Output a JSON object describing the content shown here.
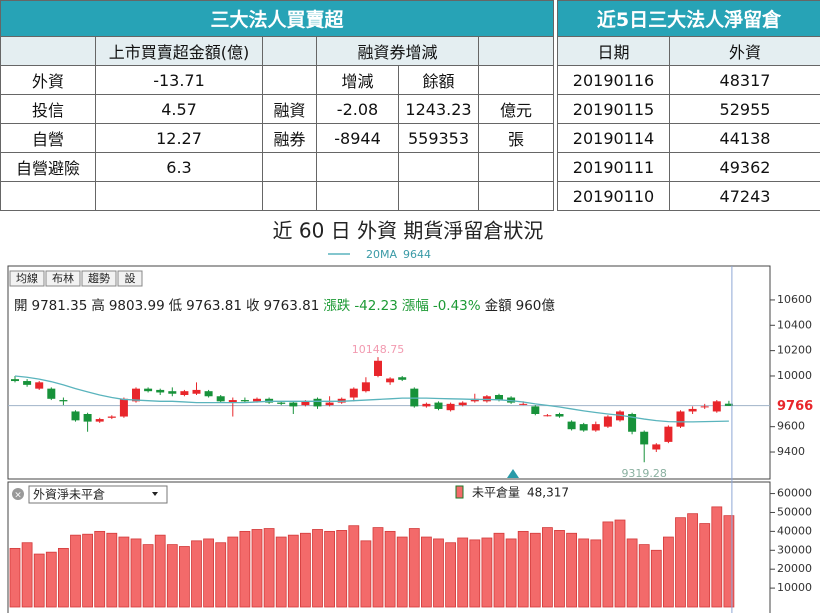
{
  "tables": {
    "left": {
      "title": "三大法人買賣超",
      "header": [
        "上市買賣超金額(億)",
        "融資券增減"
      ],
      "rows": [
        [
          "外資",
          "-13.71",
          "增減",
          "餘額"
        ],
        [
          "投信",
          "4.57",
          "融資",
          "-2.08",
          "1243.23",
          "億元"
        ],
        [
          "自營",
          "12.27",
          "融券",
          "-8944",
          "559353",
          "張"
        ],
        [
          "自營避險",
          "6.3"
        ]
      ]
    },
    "right": {
      "title": "近5日三大法人淨留倉",
      "header": [
        "日期",
        "外資"
      ],
      "rows": [
        [
          "20190116",
          "48317"
        ],
        [
          "20190115",
          "52955"
        ],
        [
          "20190114",
          "44138"
        ],
        [
          "20190111",
          "49362"
        ],
        [
          "20190110",
          "47243"
        ]
      ]
    }
  },
  "chart_data": [
    {
      "type": "candlestick",
      "title": "近 60 日 外資 期貨淨留倉狀況",
      "toolbar": [
        "均線",
        "布林",
        "趨勢",
        "設"
      ],
      "info": [
        [
          "開",
          "9781.35"
        ],
        [
          "高",
          "9803.99"
        ],
        [
          "低",
          "9763.81"
        ],
        [
          "收",
          "9763.81"
        ],
        [
          "漲跌",
          "-42.23"
        ],
        [
          "漲幅",
          "-0.43%"
        ],
        [
          "金額",
          "960億"
        ]
      ],
      "up_color": "#e8262b",
      "down_color": "#17923a",
      "open": [
        9975,
        9960,
        9900,
        9900,
        9810,
        9720,
        9700,
        9640,
        9670,
        9680,
        9800,
        9900,
        9890,
        9880,
        9850,
        9860,
        9880,
        9840,
        9790,
        9810,
        9800,
        9820,
        9790,
        9790,
        9770,
        9820,
        9770,
        9790,
        9830,
        9880,
        10000,
        9950,
        9990,
        9900,
        9760,
        9790,
        9730,
        9770,
        9800,
        9800,
        9850,
        9830,
        9780,
        9760,
        9690,
        9700,
        9640,
        9620,
        9570,
        9600,
        9650,
        9700,
        9560,
        9420,
        9480,
        9600,
        9720,
        9760,
        9720,
        9781.35
      ],
      "high": [
        10000,
        9975,
        9960,
        9910,
        9830,
        9730,
        9710,
        9670,
        9690,
        9830,
        9910,
        9910,
        9900,
        9910,
        9890,
        9950,
        9890,
        9850,
        9830,
        9830,
        9830,
        9830,
        9800,
        9800,
        9810,
        9830,
        9840,
        9830,
        9910,
        9990,
        10148.75,
        9990,
        10000,
        9910,
        9790,
        9800,
        9790,
        9800,
        9860,
        9850,
        9860,
        9840,
        9800,
        9770,
        9700,
        9710,
        9650,
        9630,
        9640,
        9690,
        9730,
        9710,
        9570,
        9470,
        9610,
        9730,
        9760,
        9780,
        9810,
        9803.99
      ],
      "low": [
        9950,
        9915,
        9890,
        9810,
        9770,
        9640,
        9560,
        9630,
        9660,
        9670,
        9790,
        9870,
        9850,
        9840,
        9840,
        9850,
        9830,
        9790,
        9680,
        9790,
        9790,
        9780,
        9770,
        9700,
        9760,
        9740,
        9760,
        9780,
        9800,
        9870,
        9990,
        9930,
        9960,
        9750,
        9750,
        9730,
        9720,
        9760,
        9790,
        9790,
        9800,
        9780,
        9770,
        9690,
        9680,
        9670,
        9570,
        9560,
        9560,
        9590,
        9640,
        9540,
        9319.28,
        9400,
        9470,
        9590,
        9700,
        9740,
        9710,
        9763.81
      ],
      "close": [
        9960,
        9930,
        9950,
        9820,
        9800,
        9650,
        9640,
        9660,
        9680,
        9820,
        9900,
        9880,
        9870,
        9860,
        9880,
        9890,
        9840,
        9800,
        9810,
        9800,
        9820,
        9790,
        9780,
        9760,
        9800,
        9760,
        9790,
        9820,
        9900,
        9950,
        10120,
        9980,
        9970,
        9760,
        9780,
        9740,
        9780,
        9790,
        9820,
        9840,
        9810,
        9790,
        9780,
        9700,
        9690,
        9680,
        9580,
        9570,
        9620,
        9680,
        9720,
        9560,
        9460,
        9460,
        9600,
        9720,
        9740,
        9760,
        9800,
        9763.81
      ],
      "ma": {
        "name": "20MA",
        "color": "#5ab4bd",
        "values": [
          10000,
          9990,
          9975,
          9955,
          9930,
          9900,
          9875,
          9850,
          9830,
          9815,
          9810,
          9805,
          9800,
          9800,
          9795,
          9790,
          9790,
          9790,
          9790,
          9790,
          9795,
          9800,
          9800,
          9800,
          9800,
          9800,
          9800,
          9800,
          9805,
          9810,
          9815,
          9820,
          9825,
          9825,
          9825,
          9822,
          9820,
          9818,
          9815,
          9815,
          9812,
          9805,
          9795,
          9780,
          9768,
          9755,
          9740,
          9725,
          9712,
          9700,
          9690,
          9675,
          9660,
          9648,
          9640,
          9638,
          9638,
          9640,
          9642,
          9644
        ]
      },
      "current": 9766,
      "ylim": [
        9195,
        10852
      ],
      "yticks": [
        9400,
        9600,
        10000,
        10200,
        10400,
        10600
      ]
    },
    {
      "type": "bar",
      "selector": "外資淨未平倉",
      "series": [
        {
          "name": "未平倉量",
          "color": "#f36a6a",
          "value_label": "48,317",
          "values": [
            31000,
            34000,
            28000,
            29000,
            31000,
            38000,
            38500,
            40000,
            39000,
            37000,
            36000,
            33000,
            38000,
            33000,
            32000,
            35000,
            36000,
            34000,
            37000,
            40000,
            41000,
            41500,
            37000,
            38000,
            39000,
            41000,
            40000,
            40500,
            43000,
            35000,
            42000,
            40000,
            37000,
            41500,
            37000,
            36000,
            34000,
            36500,
            35500,
            36500,
            39000,
            36000,
            40000,
            39000,
            42000,
            40500,
            39000,
            36000,
            35500,
            45000,
            46000,
            36000,
            33000,
            30000,
            37000,
            47243,
            49362,
            44138,
            52955,
            48317
          ]
        }
      ],
      "ylim": [
        0,
        64000
      ],
      "yticks": [
        10000,
        20000,
        30000,
        40000,
        50000,
        60000
      ]
    }
  ]
}
